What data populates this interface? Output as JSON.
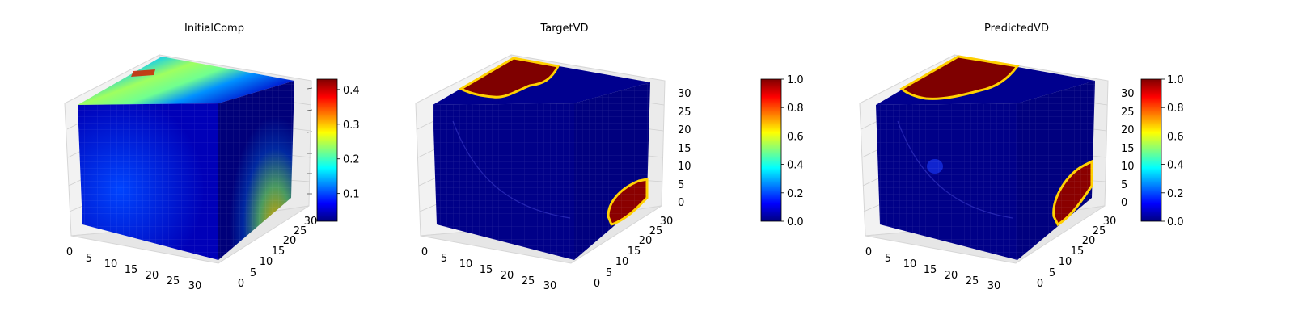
{
  "colormap": {
    "name": "jet",
    "stops": [
      "#00007f",
      "#0000ff",
      "#007fff",
      "#00ffff",
      "#7fff7f",
      "#ffff00",
      "#ff7f00",
      "#ff0000",
      "#7f0000"
    ]
  },
  "chart_data": [
    {
      "type": "heatmap",
      "title": "InitialComp",
      "xlabel": "",
      "ylabel": "",
      "zlabel": "",
      "x_ticks": [
        "0",
        "5",
        "10",
        "15",
        "20",
        "25",
        "30"
      ],
      "y_ticks": [
        "0",
        "5",
        "10",
        "15",
        "20",
        "25",
        "30"
      ],
      "z_ticks": [],
      "xlim": [
        0,
        32
      ],
      "ylim": [
        0,
        32
      ],
      "zlim": [
        0,
        32
      ],
      "colorbar": {
        "min": 0.02,
        "max": 0.43,
        "ticks": [
          "0.1",
          "0.2",
          "0.3",
          "0.4"
        ],
        "tick_values": [
          0.1,
          0.2,
          0.3,
          0.4
        ]
      },
      "grid": true
    },
    {
      "type": "heatmap",
      "title": "TargetVD",
      "xlabel": "",
      "ylabel": "",
      "zlabel": "",
      "x_ticks": [
        "0",
        "5",
        "10",
        "15",
        "20",
        "25",
        "30"
      ],
      "y_ticks": [
        "0",
        "5",
        "10",
        "15",
        "20",
        "25",
        "30"
      ],
      "z_ticks": [
        "0",
        "5",
        "10",
        "15",
        "20",
        "25",
        "30"
      ],
      "xlim": [
        0,
        32
      ],
      "ylim": [
        0,
        32
      ],
      "zlim": [
        0,
        32
      ],
      "colorbar": {
        "min": 0.0,
        "max": 1.0,
        "ticks": [
          "0.0",
          "0.2",
          "0.4",
          "0.6",
          "0.8",
          "1.0"
        ],
        "tick_values": [
          0,
          0.2,
          0.4,
          0.6,
          0.8,
          1.0
        ]
      },
      "grid": true
    },
    {
      "type": "heatmap",
      "title": "PredictedVD",
      "xlabel": "",
      "ylabel": "",
      "zlabel": "",
      "x_ticks": [
        "0",
        "5",
        "10",
        "15",
        "20",
        "25",
        "30"
      ],
      "y_ticks": [
        "0",
        "5",
        "10",
        "15",
        "20",
        "25",
        "30"
      ],
      "z_ticks": [
        "0",
        "5",
        "10",
        "15",
        "20",
        "25",
        "30"
      ],
      "xlim": [
        0,
        32
      ],
      "ylim": [
        0,
        32
      ],
      "zlim": [
        0,
        32
      ],
      "colorbar": {
        "min": 0.0,
        "max": 1.0,
        "ticks": [
          "0.0",
          "0.2",
          "0.4",
          "0.6",
          "0.8",
          "1.0"
        ],
        "tick_values": [
          0,
          0.2,
          0.4,
          0.6,
          0.8,
          1.0
        ]
      },
      "grid": true
    }
  ]
}
